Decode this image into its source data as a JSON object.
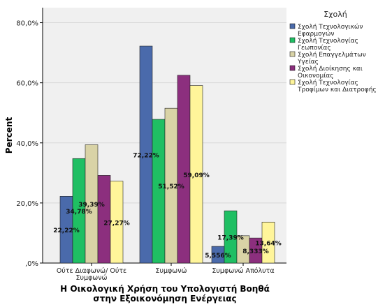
{
  "chart_data": {
    "type": "bar",
    "ylabel": "Percent",
    "xlabel_lines": [
      "Η Οικολογική Χρήση του Υπολογιστή Βοηθά",
      "στην Εξοικονόμηση Ενέργειας"
    ],
    "categories": [
      [
        "Ούτε Διαφωνώ/ Ούτε",
        "Συμφωνώ"
      ],
      [
        "Συμφωνώ"
      ],
      [
        "Συμφωνώ Απόλυτα"
      ]
    ],
    "ylim": [
      0,
      85
    ],
    "yticks": [
      {
        "value": 0,
        "label": ",0%"
      },
      {
        "value": 20,
        "label": "20,0%"
      },
      {
        "value": 40,
        "label": "40,0%"
      },
      {
        "value": 60,
        "label": "60,0%"
      },
      {
        "value": 80,
        "label": "80,0%"
      }
    ],
    "legend": {
      "title": "Σχολή",
      "placement": "right"
    },
    "series": [
      {
        "name_lines": [
          "Σχολή Τεχνολογικών",
          "Εφαρμογών"
        ],
        "color": "#4a6aab",
        "values": [
          22.22,
          72.22,
          5.556
        ],
        "labels": [
          "22,22%",
          "72,22%",
          "5,556%"
        ]
      },
      {
        "name_lines": [
          "Σχολή Τεχνολογίας",
          "Γεωπονίας"
        ],
        "color": "#1fbf63",
        "values": [
          34.78,
          47.83,
          17.39
        ],
        "labels": [
          "34,78%",
          "",
          "17,39%"
        ]
      },
      {
        "name_lines": [
          "Σχολή Επαγγελμάτων",
          "Υγείας"
        ],
        "color": "#d9d3a6",
        "values": [
          39.39,
          51.52,
          9.091
        ],
        "labels": [
          "39,39%",
          "51,52%",
          ""
        ]
      },
      {
        "name_lines": [
          "Σχολή Διοίκησης και",
          "Οικονομίας"
        ],
        "color": "#8c2f7e",
        "values": [
          29.17,
          62.5,
          8.333
        ],
        "labels": [
          "",
          "",
          "8,333%"
        ]
      },
      {
        "name_lines": [
          "Σχολή Τεχνολογίας",
          "Τροφίμων και Διατροφής"
        ],
        "color": "#fff59a",
        "values": [
          27.27,
          59.09,
          13.64
        ],
        "labels": [
          "27,27%",
          "59,09%",
          "13,64%"
        ]
      }
    ]
  }
}
